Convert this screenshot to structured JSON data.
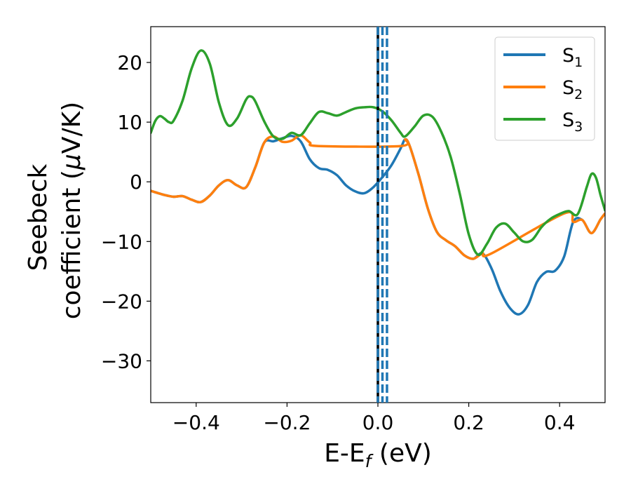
{
  "chart_data": {
    "type": "line",
    "xlabel": {
      "main": "E-E",
      "sub": "f",
      "suffix": " (eV)"
    },
    "ylabel": {
      "line1": "Seebeck",
      "line2_prefix": "coefficient  (",
      "mu": "μ",
      "line2_suffix": "V/K)"
    },
    "xlim": [
      -0.5,
      0.5
    ],
    "ylim": [
      -37,
      26
    ],
    "xticks": [
      -0.4,
      -0.2,
      0.0,
      0.2,
      0.4
    ],
    "xtick_labels": [
      "−0.4",
      "−0.2",
      "0.0",
      "0.2",
      "0.4"
    ],
    "yticks": [
      20,
      10,
      0,
      -10,
      -20,
      -30
    ],
    "ytick_labels": [
      "20",
      "10",
      "0",
      "−10",
      "−20",
      "−30"
    ],
    "grid": false,
    "legend_position": "top-right",
    "vertical_lines": [
      {
        "x": 0.0,
        "color": "#000000",
        "style": "solid"
      },
      {
        "x": 0.0,
        "color": "#1f77b4",
        "style": "dashed"
      },
      {
        "x": 0.01,
        "color": "#1f77b4",
        "style": "dashed"
      },
      {
        "x": 0.02,
        "color": "#1f77b4",
        "style": "dashed"
      }
    ],
    "series": [
      {
        "name": "S",
        "sub": "1",
        "color": "#1f77b4",
        "points": [
          [
            -0.5,
            -1.5
          ],
          [
            -0.47,
            -2.2
          ],
          [
            -0.45,
            -2.5
          ],
          [
            -0.43,
            -2.4
          ],
          [
            -0.41,
            -3.0
          ],
          [
            -0.39,
            -3.4
          ],
          [
            -0.37,
            -2.3
          ],
          [
            -0.35,
            -0.6
          ],
          [
            -0.33,
            0.3
          ],
          [
            -0.31,
            -0.6
          ],
          [
            -0.29,
            -0.9
          ],
          [
            -0.27,
            2.4
          ],
          [
            -0.25,
            6.6
          ],
          [
            -0.23,
            6.8
          ],
          [
            -0.21,
            7.3
          ],
          [
            -0.19,
            7.7
          ],
          [
            -0.17,
            6.8
          ],
          [
            -0.15,
            3.8
          ],
          [
            -0.13,
            2.3
          ],
          [
            -0.11,
            2.0
          ],
          [
            -0.09,
            1.1
          ],
          [
            -0.07,
            -0.6
          ],
          [
            -0.05,
            -1.6
          ],
          [
            -0.03,
            -1.9
          ],
          [
            -0.01,
            -0.9
          ],
          [
            0.01,
            0.8
          ],
          [
            0.03,
            2.8
          ],
          [
            0.05,
            5.6
          ],
          [
            0.06,
            7.1
          ],
          [
            0.07,
            6.0
          ],
          [
            0.09,
            1.1
          ],
          [
            0.11,
            -4.5
          ],
          [
            0.13,
            -8.4
          ],
          [
            0.15,
            -9.8
          ],
          [
            0.17,
            -10.8
          ],
          [
            0.19,
            -12.3
          ],
          [
            0.21,
            -12.9
          ],
          [
            0.23,
            -12.0
          ],
          [
            0.25,
            -14.5
          ],
          [
            0.27,
            -18.4
          ],
          [
            0.29,
            -21.1
          ],
          [
            0.31,
            -22.2
          ],
          [
            0.33,
            -20.7
          ],
          [
            0.35,
            -16.8
          ],
          [
            0.37,
            -15.1
          ],
          [
            0.39,
            -14.9
          ],
          [
            0.41,
            -12.5
          ],
          [
            0.43,
            -6.7
          ],
          [
            0.45,
            -6.4
          ],
          [
            0.47,
            -8.6
          ],
          [
            0.49,
            -6.3
          ],
          [
            0.5,
            -5.3
          ]
        ]
      },
      {
        "name": "S",
        "sub": "2",
        "color": "#ff7f0e",
        "points": [
          [
            -0.5,
            -1.5
          ],
          [
            -0.47,
            -2.2
          ],
          [
            -0.45,
            -2.5
          ],
          [
            -0.43,
            -2.4
          ],
          [
            -0.41,
            -3.0
          ],
          [
            -0.39,
            -3.4
          ],
          [
            -0.37,
            -2.3
          ],
          [
            -0.35,
            -0.6
          ],
          [
            -0.33,
            0.3
          ],
          [
            -0.31,
            -0.6
          ],
          [
            -0.29,
            -0.9
          ],
          [
            -0.27,
            2.4
          ],
          [
            -0.25,
            6.6
          ],
          [
            -0.23,
            7.6
          ],
          [
            -0.21,
            6.7
          ],
          [
            -0.19,
            6.9
          ],
          [
            -0.17,
            7.8
          ],
          [
            -0.15,
            6.6
          ],
          [
            -0.13,
            6.0
          ],
          [
            0.05,
            6.0
          ],
          [
            0.06,
            7.1
          ],
          [
            0.07,
            6.0
          ],
          [
            0.09,
            1.1
          ],
          [
            0.11,
            -4.5
          ],
          [
            0.13,
            -8.4
          ],
          [
            0.15,
            -9.8
          ],
          [
            0.17,
            -10.8
          ],
          [
            0.19,
            -12.3
          ],
          [
            0.21,
            -12.9
          ],
          [
            0.23,
            -12.0
          ],
          [
            0.25,
            -12.0
          ],
          [
            0.41,
            -5.3
          ],
          [
            0.43,
            -6.7
          ],
          [
            0.45,
            -6.4
          ],
          [
            0.47,
            -8.6
          ],
          [
            0.49,
            -6.3
          ],
          [
            0.5,
            -5.3
          ]
        ]
      },
      {
        "name": "S",
        "sub": "3",
        "color": "#2ca02c",
        "points": [
          [
            -0.5,
            8.2
          ],
          [
            -0.49,
            10.2
          ],
          [
            -0.48,
            11.0
          ],
          [
            -0.47,
            10.6
          ],
          [
            -0.46,
            10.0
          ],
          [
            -0.45,
            10.2
          ],
          [
            -0.43,
            13.6
          ],
          [
            -0.41,
            19.0
          ],
          [
            -0.39,
            22.0
          ],
          [
            -0.37,
            19.8
          ],
          [
            -0.35,
            13.3
          ],
          [
            -0.33,
            9.5
          ],
          [
            -0.31,
            10.6
          ],
          [
            -0.29,
            13.8
          ],
          [
            -0.28,
            14.3
          ],
          [
            -0.27,
            13.5
          ],
          [
            -0.25,
            10.1
          ],
          [
            -0.23,
            7.6
          ],
          [
            -0.21,
            7.2
          ],
          [
            -0.19,
            8.2
          ],
          [
            -0.17,
            7.8
          ],
          [
            -0.15,
            9.8
          ],
          [
            -0.13,
            11.7
          ],
          [
            -0.11,
            11.5
          ],
          [
            -0.09,
            11.1
          ],
          [
            -0.07,
            11.7
          ],
          [
            -0.05,
            12.3
          ],
          [
            -0.03,
            12.5
          ],
          [
            -0.01,
            12.5
          ],
          [
            0.01,
            11.8
          ],
          [
            0.03,
            10.3
          ],
          [
            0.05,
            8.2
          ],
          [
            0.06,
            7.6
          ],
          [
            0.08,
            9.2
          ],
          [
            0.1,
            11.1
          ],
          [
            0.12,
            10.9
          ],
          [
            0.14,
            8.3
          ],
          [
            0.16,
            4.2
          ],
          [
            0.18,
            -1.9
          ],
          [
            0.2,
            -8.8
          ],
          [
            0.22,
            -12.2
          ],
          [
            0.24,
            -10.4
          ],
          [
            0.26,
            -7.7
          ],
          [
            0.28,
            -7.0
          ],
          [
            0.3,
            -8.5
          ],
          [
            0.32,
            -10.0
          ],
          [
            0.34,
            -9.7
          ],
          [
            0.36,
            -7.6
          ],
          [
            0.38,
            -6.2
          ],
          [
            0.4,
            -5.4
          ],
          [
            0.42,
            -4.9
          ],
          [
            0.44,
            -5.4
          ],
          [
            0.46,
            -0.8
          ],
          [
            0.47,
            1.3
          ],
          [
            0.48,
            0.7
          ],
          [
            0.49,
            -2.2
          ],
          [
            0.5,
            -4.8
          ]
        ]
      }
    ]
  }
}
